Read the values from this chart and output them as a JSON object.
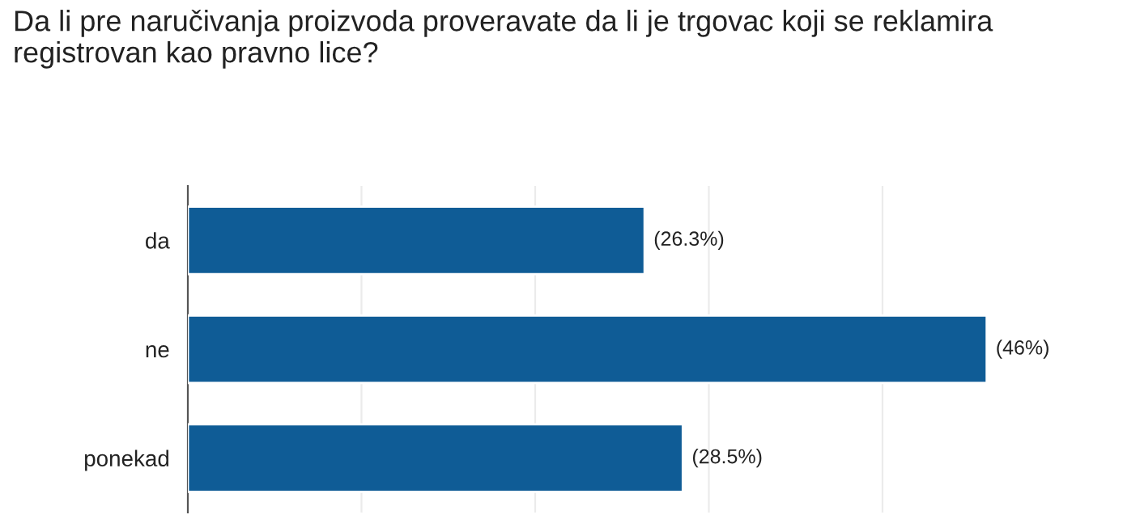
{
  "chart_data": {
    "type": "bar",
    "orientation": "horizontal",
    "title": "Da li pre naručivanja proizvoda proveravate da li je trgovac koji se reklamira registrovan kao pravno lice?",
    "categories": [
      "da",
      "ne",
      "ponekad"
    ],
    "values": [
      26.3,
      46,
      28.5
    ],
    "value_labels": [
      "(26.3%)",
      "(46%)",
      "(28.5%)"
    ],
    "color": "#0f5c96",
    "grid": "x",
    "tick_labels": "y"
  }
}
